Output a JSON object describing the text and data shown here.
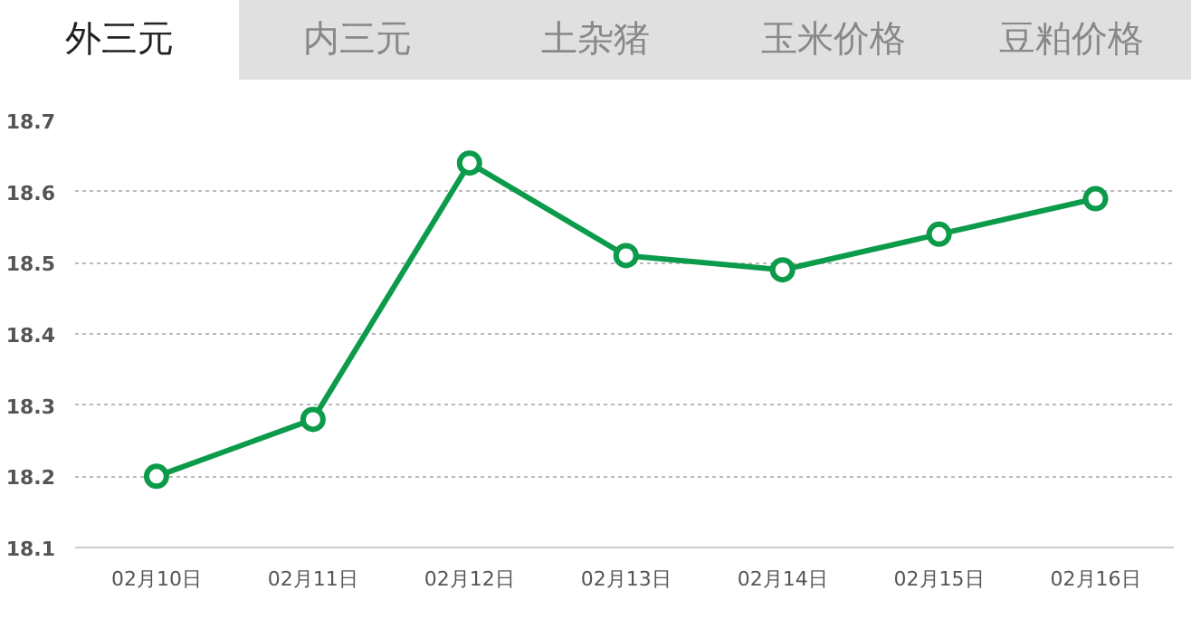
{
  "chart_data": {
    "type": "line",
    "annotations": [
      "外三元",
      "内三元",
      "土杂猪",
      "玉米价格",
      "豆粕价格"
    ],
    "categories": [
      "02月10日",
      "02月11日",
      "02月12日",
      "02月13日",
      "02月14日",
      "02月15日",
      "02月16日"
    ],
    "series": [
      {
        "color": "#0b9b4b",
        "values": [
          18.2,
          18.28,
          18.64,
          18.51,
          18.49,
          18.54,
          18.59
        ]
      }
    ],
    "ylim": [
      18.1,
      18.7
    ],
    "yticks": [
      18.1,
      18.2,
      18.3,
      18.4,
      18.5,
      18.6,
      18.7
    ],
    "grid": "y",
    "marker": "circle",
    "line_style": "solid"
  }
}
